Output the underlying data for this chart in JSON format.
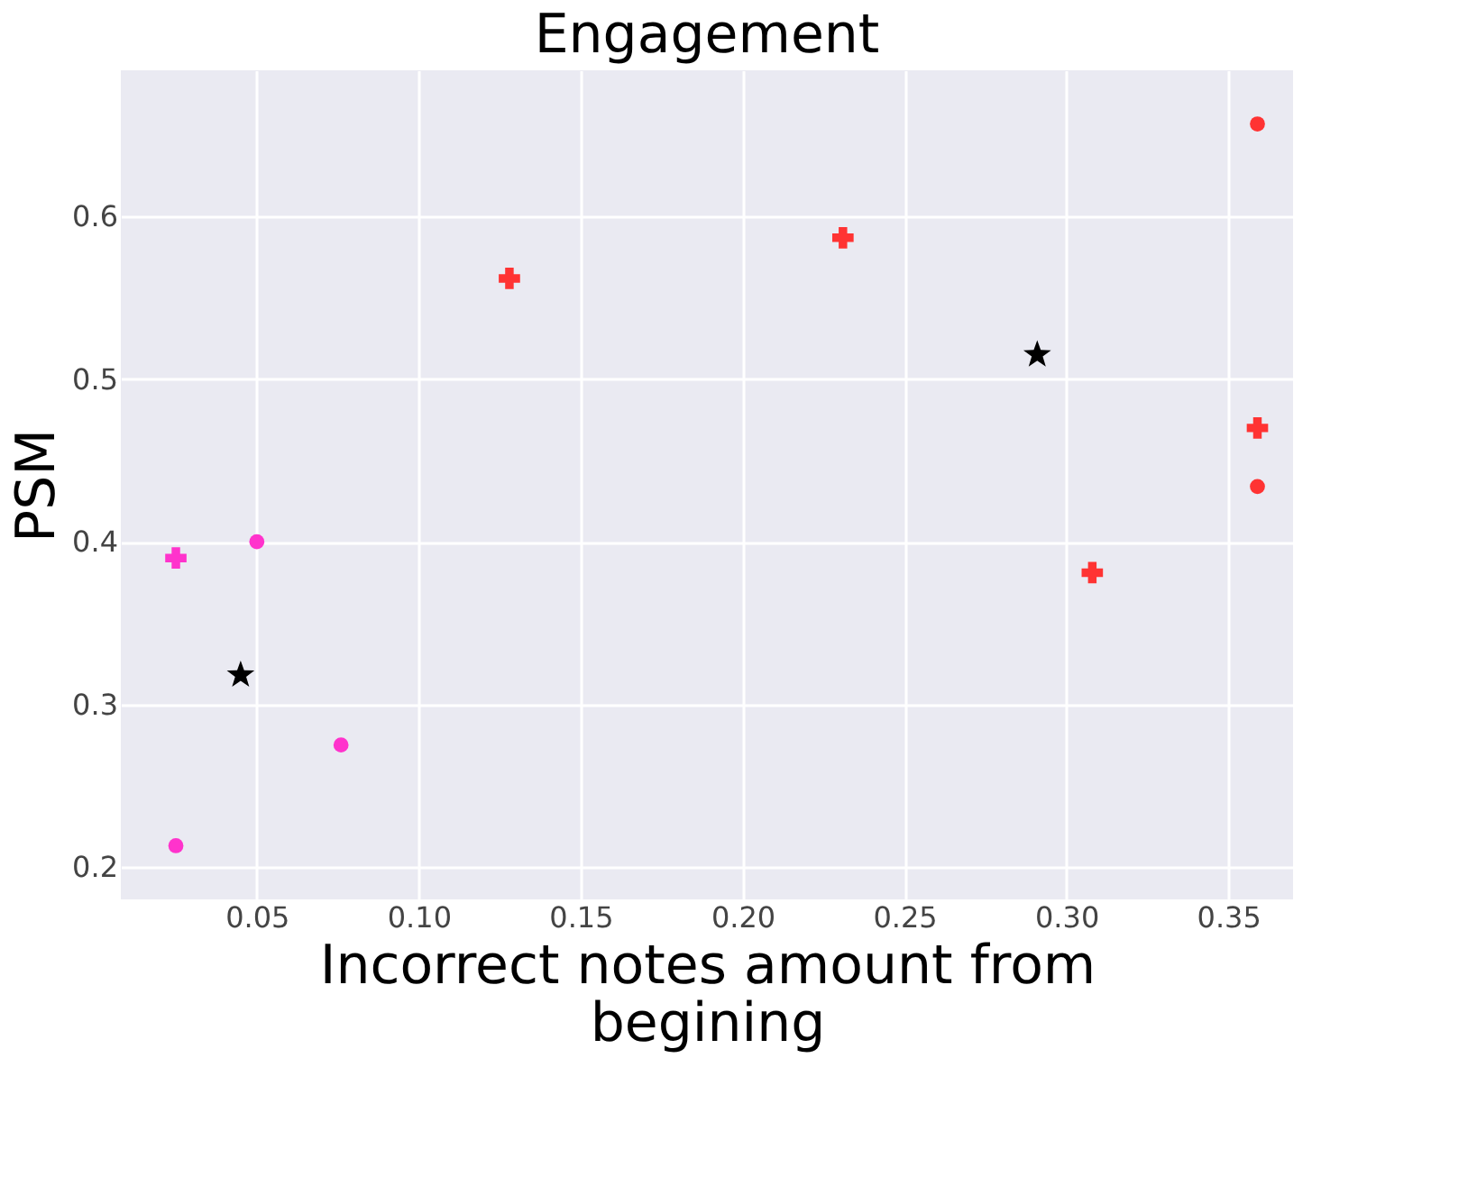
{
  "chart_data": {
    "type": "scatter",
    "title": "Engagement",
    "xlabel": "Incorrect notes amount from\nbegining",
    "ylabel": "PSM",
    "xlim": [
      0.008,
      0.37
    ],
    "ylim": [
      0.18,
      0.69
    ],
    "xticks": [
      0.05,
      {
        "value": 0.1,
        "label": "0.10"
      },
      0.15,
      {
        "value": 0.2,
        "label": "0.20"
      },
      0.25,
      {
        "value": 0.3,
        "label": "0.30"
      },
      0.35
    ],
    "yticks": [
      0.2,
      0.3,
      0.4,
      0.5,
      0.6
    ],
    "grid": true,
    "series": [
      {
        "color": "#ff33cc",
        "marker": "cross",
        "x": [
          0.025
        ],
        "values": [
          0.39
        ]
      },
      {
        "color": "#ff33cc",
        "marker": "circle",
        "x": [
          0.05,
          0.076,
          0.025
        ],
        "values": [
          0.4,
          0.275,
          0.213
        ]
      },
      {
        "color": "#000000",
        "marker": "star",
        "x": [
          0.045,
          0.291
        ],
        "values": [
          0.318,
          0.515
        ]
      },
      {
        "color": "#ff3333",
        "marker": "cross",
        "x": [
          0.128,
          0.231,
          0.308,
          0.359
        ],
        "values": [
          0.562,
          0.587,
          0.381,
          0.47
        ]
      },
      {
        "color": "#ff3333",
        "marker": "circle",
        "x": [
          0.359,
          0.359
        ],
        "values": [
          0.434,
          0.657
        ]
      }
    ]
  }
}
